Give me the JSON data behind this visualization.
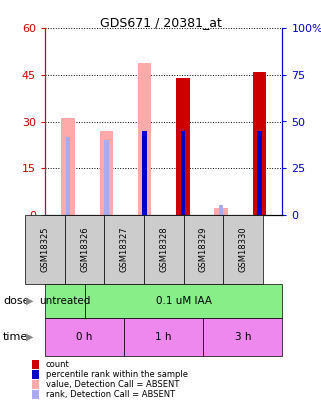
{
  "title": "GDS671 / 20381_at",
  "samples": [
    "GSM18325",
    "GSM18326",
    "GSM18327",
    "GSM18328",
    "GSM18329",
    "GSM18330"
  ],
  "value_bars": [
    31,
    27,
    49,
    44,
    2,
    46
  ],
  "rank_bars": [
    25,
    24,
    27,
    27,
    3,
    27
  ],
  "value_absent": [
    true,
    true,
    true,
    false,
    true,
    false
  ],
  "rank_absent": [
    true,
    true,
    false,
    false,
    true,
    false
  ],
  "left_ylim": [
    0,
    60
  ],
  "right_ylim": [
    0,
    100
  ],
  "left_ticks": [
    0,
    15,
    30,
    45,
    60
  ],
  "right_ticks": [
    0,
    25,
    50,
    75,
    100
  ],
  "left_tick_labels": [
    "0",
    "15",
    "30",
    "45",
    "60"
  ],
  "right_tick_labels": [
    "0",
    "25",
    "50",
    "75",
    "100%"
  ],
  "color_red": "#cc0000",
  "color_pink": "#ffaaaa",
  "color_blue": "#0000cc",
  "color_lightblue": "#aaaaee",
  "color_green": "#88ee88",
  "color_magenta": "#ee88ee",
  "color_gray_box": "#cccccc",
  "bar_width": 0.35,
  "rank_bar_width": 0.12
}
